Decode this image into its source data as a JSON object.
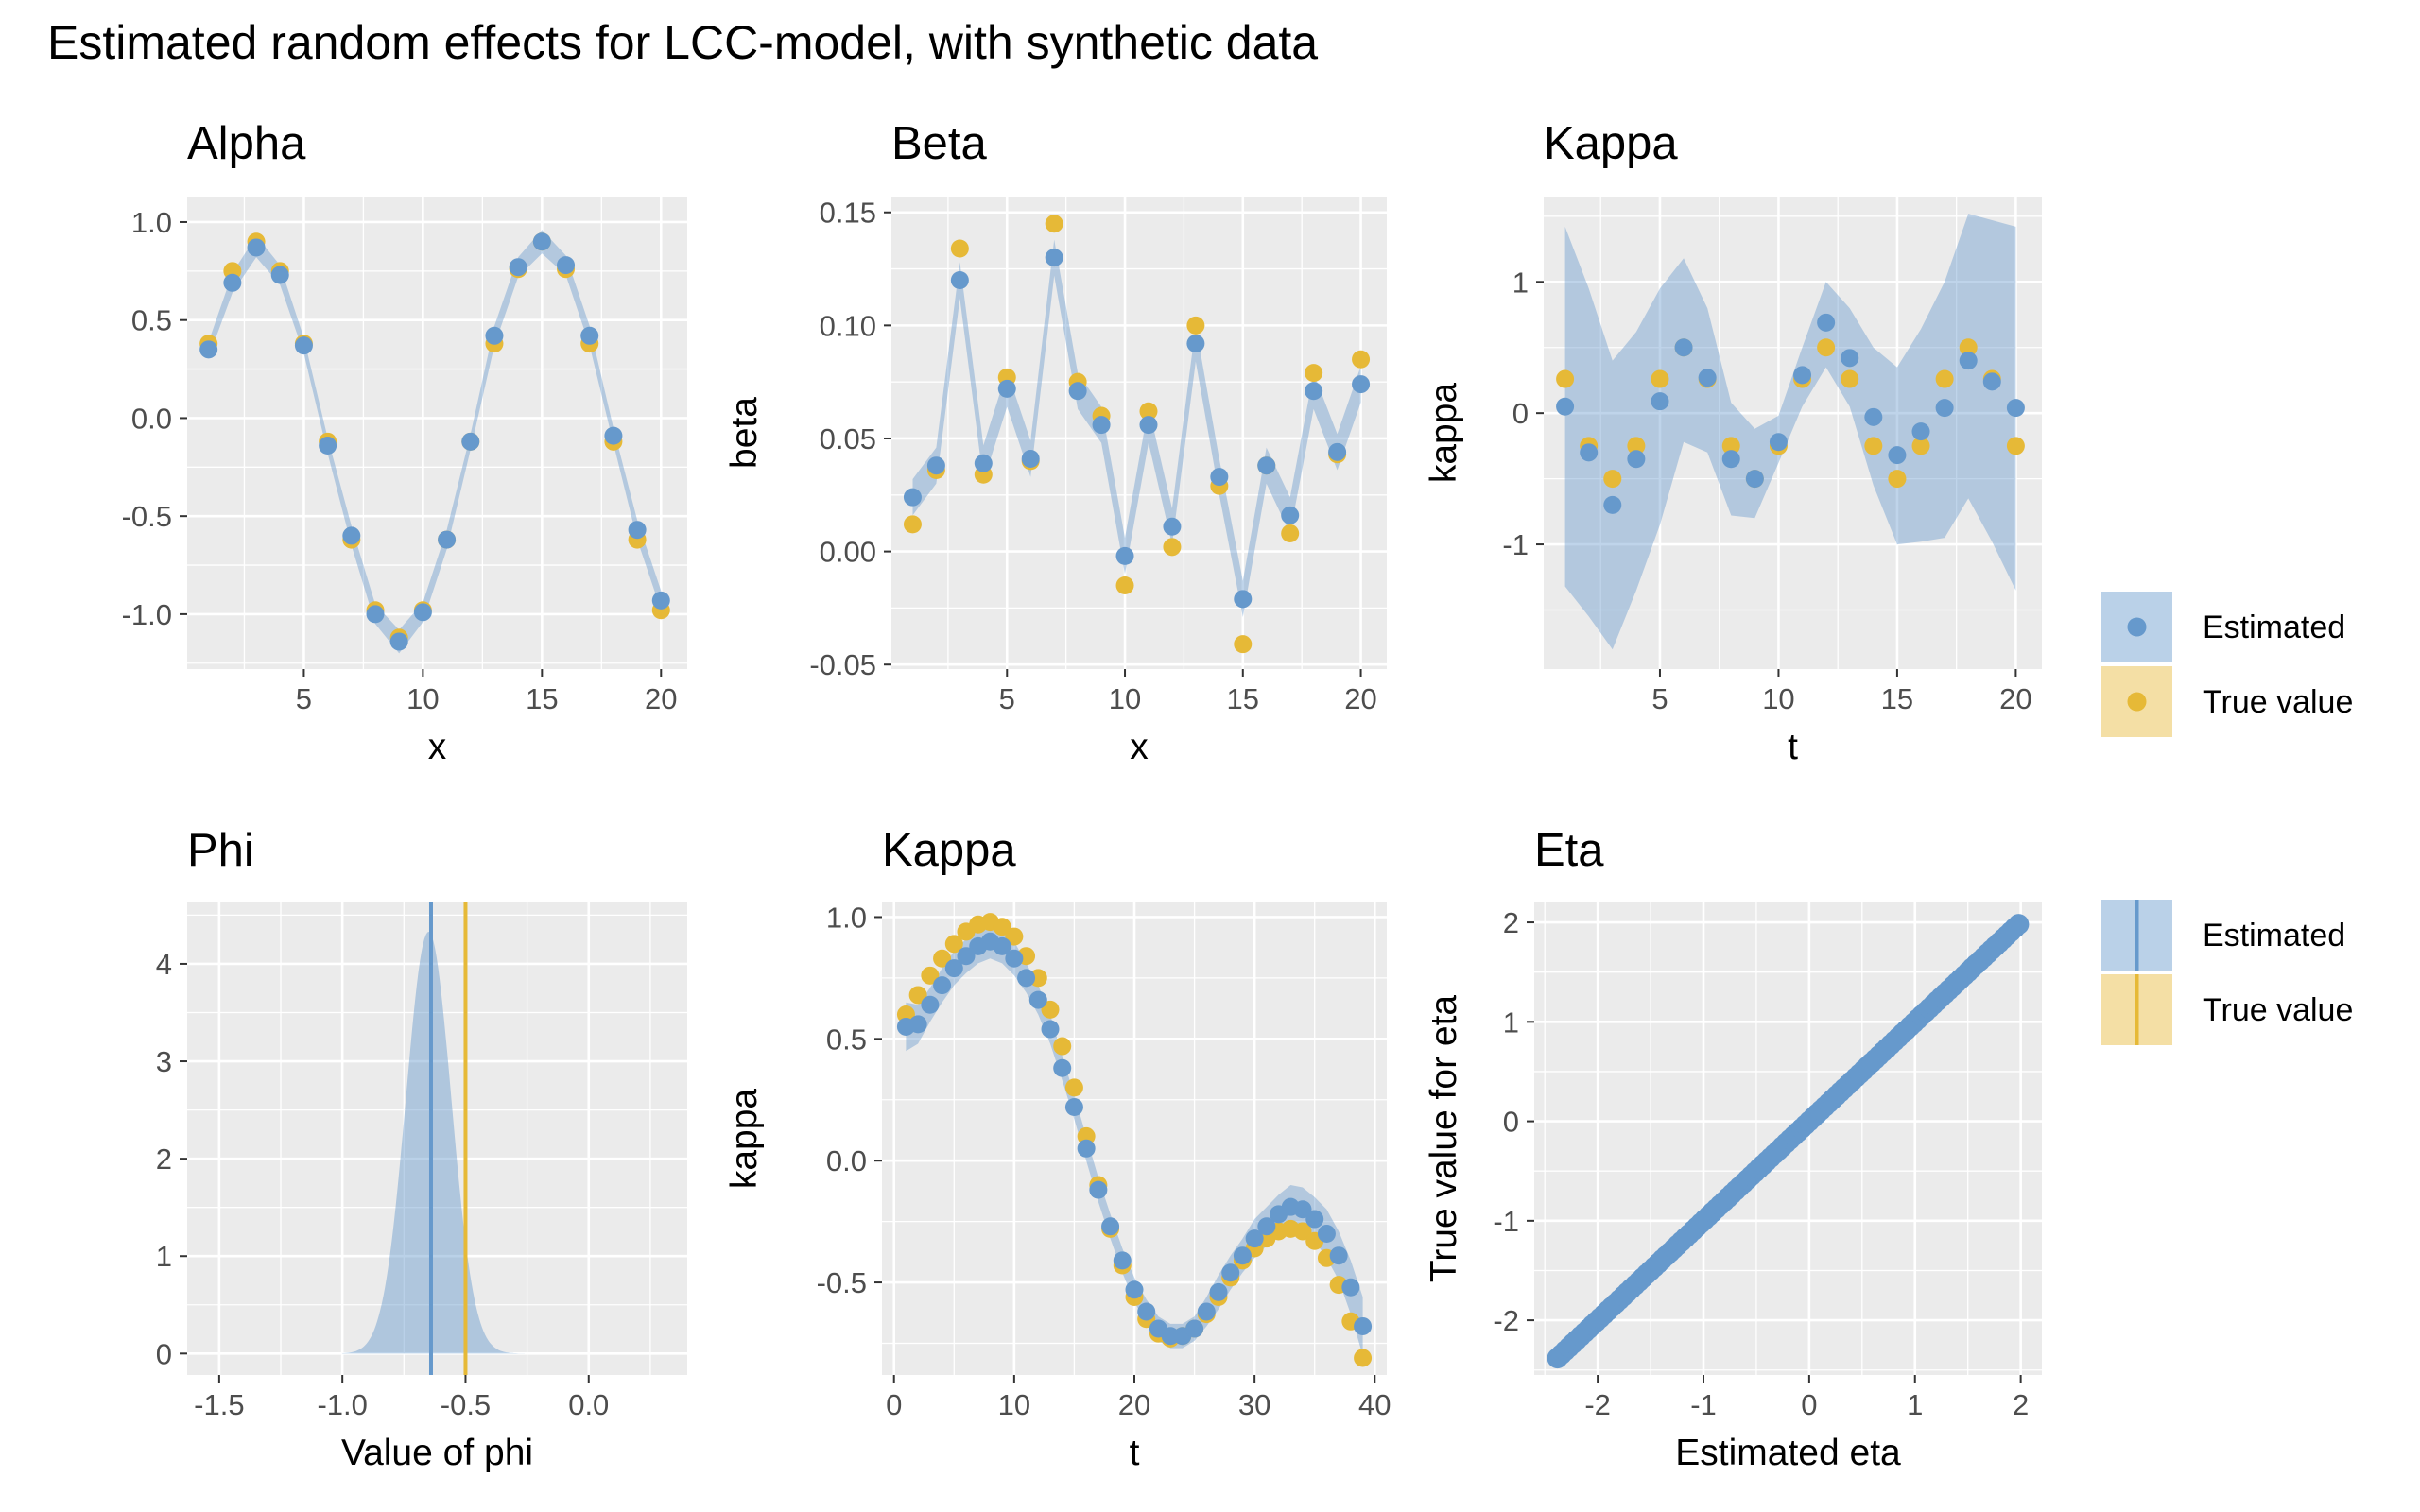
{
  "title": "Estimated random effects for LCC-model, with synthetic data",
  "colors": {
    "estimated": "#6699cc",
    "true_value": "#e6b937",
    "panel_bg": "#ebebeb",
    "grid": "#ffffff",
    "ribbon": "#6699cc",
    "ribbon_true": "#e6b937"
  },
  "legend": {
    "estimated": "Estimated",
    "true_value": "True value"
  },
  "chart_data": [
    {
      "id": "alpha",
      "type": "scatter",
      "title": "Alpha",
      "xlabel": "x",
      "ylabel": "",
      "xlim": [
        0.1,
        21.1
      ],
      "ylim": [
        -1.28,
        1.13
      ],
      "xticks": [
        5,
        10,
        15,
        20
      ],
      "yticks": [
        -1.0,
        -0.5,
        0.0,
        0.5,
        1.0
      ],
      "yticklabels": [
        "-1.0",
        "-0.5",
        "0.0",
        "0.5",
        "1.0"
      ],
      "x": [
        1,
        2,
        3,
        4,
        5,
        6,
        7,
        8,
        9,
        10,
        11,
        12,
        13,
        14,
        15,
        16,
        17,
        18,
        19,
        20
      ],
      "estimated": [
        0.35,
        0.69,
        0.87,
        0.73,
        0.37,
        -0.14,
        -0.6,
        -1.0,
        -1.14,
        -0.99,
        -0.62,
        -0.12,
        0.42,
        0.77,
        0.9,
        0.78,
        0.42,
        -0.09,
        -0.57,
        -0.93
      ],
      "true_value": [
        0.38,
        0.75,
        0.9,
        0.75,
        0.38,
        -0.12,
        -0.62,
        -0.98,
        -1.12,
        -0.98,
        -0.62,
        -0.12,
        0.38,
        0.76,
        0.9,
        0.76,
        0.38,
        -0.12,
        -0.62,
        -0.98
      ],
      "lower": [
        0.31,
        0.64,
        0.82,
        0.68,
        0.33,
        -0.18,
        -0.65,
        -1.05,
        -1.2,
        -1.04,
        -0.67,
        -0.16,
        0.37,
        0.72,
        0.84,
        0.73,
        0.37,
        -0.13,
        -0.62,
        -0.98
      ],
      "upper": [
        0.39,
        0.74,
        0.93,
        0.78,
        0.41,
        -0.1,
        -0.55,
        -0.95,
        -1.08,
        -0.94,
        -0.57,
        -0.08,
        0.47,
        0.82,
        0.96,
        0.83,
        0.47,
        -0.05,
        -0.52,
        -0.88
      ]
    },
    {
      "id": "beta",
      "type": "scatter",
      "title": "Beta",
      "xlabel": "x",
      "ylabel": "beta",
      "xlim": [
        0.1,
        21.1
      ],
      "ylim": [
        -0.052,
        0.157
      ],
      "xticks": [
        5,
        10,
        15,
        20
      ],
      "yticks": [
        -0.05,
        0.0,
        0.05,
        0.1,
        0.15
      ],
      "yticklabels": [
        "-0.05",
        "0.00",
        "0.05",
        "0.10",
        "0.15"
      ],
      "x": [
        1,
        2,
        3,
        4,
        5,
        6,
        7,
        8,
        9,
        10,
        11,
        12,
        13,
        14,
        15,
        16,
        17,
        18,
        19,
        20
      ],
      "estimated": [
        0.024,
        0.038,
        0.12,
        0.039,
        0.072,
        0.041,
        0.13,
        0.071,
        0.056,
        -0.002,
        0.056,
        0.011,
        0.092,
        0.033,
        -0.021,
        0.038,
        0.016,
        0.071,
        0.044,
        0.074
      ],
      "true_value": [
        0.012,
        0.036,
        0.134,
        0.034,
        0.077,
        0.04,
        0.145,
        0.075,
        0.06,
        -0.015,
        0.062,
        0.002,
        0.1,
        0.029,
        -0.041,
        0.038,
        0.008,
        0.079,
        0.043,
        0.085
      ],
      "lower": [
        0.016,
        0.03,
        0.112,
        0.031,
        0.064,
        0.033,
        0.122,
        0.063,
        0.048,
        -0.01,
        0.048,
        0.003,
        0.084,
        0.025,
        -0.029,
        0.03,
        0.008,
        0.063,
        0.036,
        0.066
      ],
      "upper": [
        0.032,
        0.046,
        0.128,
        0.047,
        0.08,
        0.049,
        0.138,
        0.079,
        0.064,
        0.006,
        0.064,
        0.019,
        0.1,
        0.041,
        -0.013,
        0.046,
        0.024,
        0.079,
        0.052,
        0.082
      ]
    },
    {
      "id": "kappa_top",
      "type": "scatter",
      "title": "Kappa",
      "xlabel": "t",
      "ylabel": "kappa",
      "xlim": [
        0.1,
        21.1
      ],
      "ylim": [
        -1.95,
        1.65
      ],
      "xticks": [
        5,
        10,
        15,
        20
      ],
      "yticks": [
        -1,
        0,
        1
      ],
      "yticklabels": [
        "-1",
        "0",
        "1"
      ],
      "x": [
        1,
        2,
        3,
        4,
        5,
        6,
        7,
        8,
        9,
        10,
        11,
        12,
        13,
        14,
        15,
        16,
        17,
        18,
        19,
        20
      ],
      "estimated": [
        0.05,
        -0.3,
        -0.7,
        -0.35,
        0.09,
        0.5,
        0.27,
        -0.35,
        -0.5,
        -0.22,
        0.29,
        0.69,
        0.42,
        -0.03,
        -0.32,
        -0.14,
        0.04,
        0.4,
        0.24,
        0.04
      ],
      "true_value": [
        0.26,
        -0.25,
        -0.5,
        -0.25,
        0.26,
        0.5,
        0.26,
        -0.25,
        -0.5,
        -0.25,
        0.26,
        0.5,
        0.26,
        -0.25,
        -0.5,
        -0.25,
        0.26,
        0.5,
        0.26,
        -0.25
      ],
      "lower": [
        -1.32,
        -1.55,
        -1.8,
        -1.35,
        -0.85,
        -0.22,
        -0.3,
        -0.78,
        -0.8,
        -0.38,
        0.05,
        0.35,
        0.05,
        -0.55,
        -1.0,
        -0.98,
        -0.95,
        -0.65,
        -0.98,
        -1.35
      ],
      "upper": [
        1.42,
        0.95,
        0.4,
        0.62,
        0.95,
        1.18,
        0.8,
        0.08,
        -0.12,
        -0.02,
        0.5,
        1.0,
        0.8,
        0.5,
        0.35,
        0.64,
        1.0,
        1.52,
        1.47,
        1.42
      ]
    },
    {
      "id": "phi",
      "type": "area",
      "title": "Phi",
      "xlabel": "Value of phi",
      "ylabel": "",
      "xlim": [
        -1.63,
        0.4
      ],
      "ylim": [
        -0.22,
        4.63
      ],
      "xticks": [
        -1.5,
        -1.0,
        -0.5,
        0.0
      ],
      "yticks": [
        0,
        1,
        2,
        3,
        4
      ],
      "xticklabels": [
        "-1.5",
        "-1.0",
        "-0.5",
        "0.0"
      ],
      "yticklabels": [
        "0",
        "1",
        "2",
        "3",
        "4"
      ],
      "density_mean": -0.65,
      "density_sd": 0.092,
      "density_peak": 4.33,
      "density_range": [
        -1.0,
        -0.26
      ],
      "estimated_line": -0.64,
      "true_line": -0.5
    },
    {
      "id": "kappa_bottom",
      "type": "scatter",
      "title": "Kappa",
      "xlabel": "t",
      "ylabel": "kappa",
      "xlim": [
        -1.0,
        41.0
      ],
      "ylim": [
        -0.88,
        1.06
      ],
      "xticks": [
        0,
        10,
        20,
        30,
        40
      ],
      "yticks": [
        -0.5,
        0.0,
        0.5,
        1.0
      ],
      "yticklabels": [
        "-0.5",
        "0.0",
        "0.5",
        "1.0"
      ],
      "x": [
        1,
        2,
        3,
        4,
        5,
        6,
        7,
        8,
        9,
        10,
        11,
        12,
        13,
        14,
        15,
        16,
        17,
        18,
        19,
        20,
        21,
        22,
        23,
        24,
        25,
        26,
        27,
        28,
        29,
        30,
        31,
        32,
        33,
        34,
        35,
        36,
        37,
        38,
        39
      ],
      "estimated": [
        0.55,
        0.56,
        0.64,
        0.72,
        0.79,
        0.84,
        0.88,
        0.9,
        0.88,
        0.83,
        0.75,
        0.66,
        0.54,
        0.38,
        0.22,
        0.05,
        -0.12,
        -0.27,
        -0.41,
        -0.53,
        -0.62,
        -0.69,
        -0.72,
        -0.72,
        -0.69,
        -0.62,
        -0.54,
        -0.46,
        -0.39,
        -0.32,
        -0.27,
        -0.22,
        -0.19,
        -0.2,
        -0.24,
        -0.3,
        -0.39,
        -0.52,
        -0.68
      ],
      "true_value": [
        0.6,
        0.68,
        0.76,
        0.83,
        0.89,
        0.94,
        0.97,
        0.98,
        0.96,
        0.92,
        0.84,
        0.75,
        0.62,
        0.47,
        0.3,
        0.1,
        -0.1,
        -0.28,
        -0.43,
        -0.56,
        -0.65,
        -0.71,
        -0.73,
        -0.72,
        -0.69,
        -0.63,
        -0.56,
        -0.48,
        -0.41,
        -0.36,
        -0.32,
        -0.29,
        -0.28,
        -0.29,
        -0.33,
        -0.4,
        -0.51,
        -0.66,
        -0.81
      ],
      "lower": [
        0.45,
        0.48,
        0.57,
        0.65,
        0.72,
        0.77,
        0.81,
        0.83,
        0.81,
        0.76,
        0.69,
        0.6,
        0.48,
        0.33,
        0.17,
        0.0,
        -0.17,
        -0.32,
        -0.46,
        -0.58,
        -0.67,
        -0.74,
        -0.77,
        -0.77,
        -0.74,
        -0.68,
        -0.61,
        -0.53,
        -0.46,
        -0.4,
        -0.35,
        -0.3,
        -0.28,
        -0.29,
        -0.33,
        -0.4,
        -0.49,
        -0.63,
        -0.8
      ],
      "upper": [
        0.65,
        0.64,
        0.71,
        0.79,
        0.86,
        0.91,
        0.95,
        0.97,
        0.95,
        0.9,
        0.81,
        0.72,
        0.6,
        0.43,
        0.27,
        0.1,
        -0.07,
        -0.22,
        -0.36,
        -0.48,
        -0.57,
        -0.64,
        -0.67,
        -0.67,
        -0.64,
        -0.56,
        -0.47,
        -0.39,
        -0.32,
        -0.24,
        -0.19,
        -0.14,
        -0.1,
        -0.11,
        -0.15,
        -0.2,
        -0.29,
        -0.41,
        -0.56
      ]
    },
    {
      "id": "eta",
      "type": "scatter",
      "title": "Eta",
      "xlabel": "Estimated eta",
      "ylabel": "True value for eta",
      "xlim": [
        -2.6,
        2.2
      ],
      "ylim": [
        -2.55,
        2.2
      ],
      "xticks": [
        -2,
        -1,
        0,
        1,
        2
      ],
      "yticks": [
        -2,
        -1,
        0,
        1,
        2
      ],
      "yticklabels": [
        "-2",
        "-1",
        "0",
        "1",
        "2"
      ],
      "x_range": [
        -2.38,
        1.98
      ],
      "n_points": 120
    }
  ]
}
